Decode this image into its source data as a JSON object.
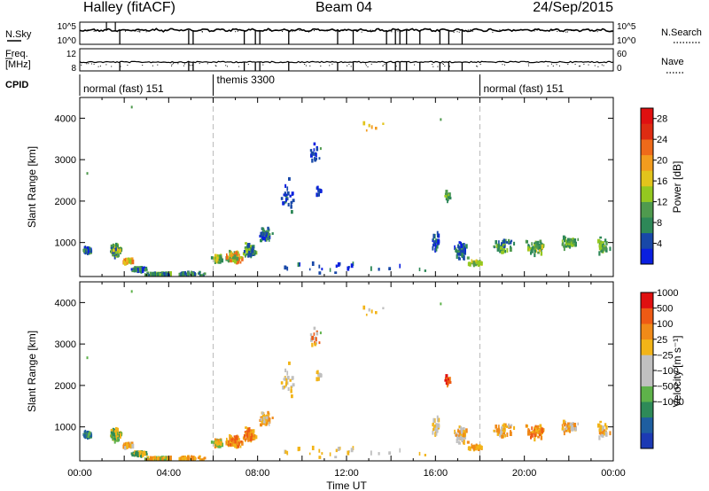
{
  "header": {
    "station": "Halley (fitACF)",
    "beam": "Beam 04",
    "date": "24/Sep/2015"
  },
  "strip": {
    "nsky_label": "N.Sky",
    "nsky_ticks": [
      "10^5",
      "10^0"
    ],
    "nsearch_label": "N.Search",
    "nsearch_ticks": [
      "10^5",
      "10^0"
    ],
    "freq_label_line1": "Freq.",
    "freq_label_line2": "[MHz]",
    "freq_ticks": [
      "12",
      "8"
    ],
    "nave_label": "Nave",
    "nave_ticks": [
      "60",
      "0"
    ],
    "cpid_label": "CPID",
    "cpid_segments": [
      {
        "label": "normal (fast) 151",
        "start_hour": 0
      },
      {
        "label": "themis 3300",
        "start_hour": 6
      },
      {
        "label": "normal (fast) 151",
        "start_hour": 18
      }
    ]
  },
  "chart_data": [
    {
      "type": "heatmap",
      "panel": "power",
      "ylabel": "Slant Range [km]",
      "xlabel": "",
      "xlim_hours": [
        0,
        24
      ],
      "ylim_km": [
        180,
        4500
      ],
      "yticks": [
        "4000",
        "3000",
        "2000",
        "1000"
      ],
      "ytick_values": [
        4000,
        3000,
        2000,
        1000
      ],
      "xticks": [
        "00:00",
        "04:00",
        "08:00",
        "12:00",
        "16:00",
        "20:00",
        "00:00"
      ],
      "xtick_hours": [
        0,
        4,
        8,
        12,
        16,
        20,
        24
      ],
      "colorbar": {
        "label": "Power [dB]",
        "ticks": [
          "28",
          "24",
          "20",
          "16",
          "12",
          "8",
          "4"
        ],
        "tick_values": [
          28,
          24,
          20,
          16,
          12,
          8,
          4
        ],
        "range": [
          0,
          30
        ],
        "colors": [
          "#0a1fe0",
          "#1848a8",
          "#2e8858",
          "#4f9a4e",
          "#94c820",
          "#e2c41c",
          "#f29c1e",
          "#ee6a1a",
          "#de2c12",
          "#e01010"
        ]
      }
    },
    {
      "type": "heatmap",
      "panel": "velocity",
      "ylabel": "Slant Range [km]",
      "xlabel": "Time UT",
      "xlim_hours": [
        0,
        24
      ],
      "ylim_km": [
        180,
        4500
      ],
      "yticks": [
        "4000",
        "3000",
        "2000",
        "1000"
      ],
      "ytick_values": [
        4000,
        3000,
        2000,
        1000
      ],
      "xticks": [
        "00:00",
        "04:00",
        "08:00",
        "12:00",
        "16:00",
        "20:00",
        "00:00"
      ],
      "xtick_hours": [
        0,
        4,
        8,
        12,
        16,
        20,
        24
      ],
      "colorbar": {
        "label": "Velocity [m s⁻¹]",
        "ticks": [
          "1000",
          "500",
          "100",
          "25",
          "−25",
          "−100",
          "−500",
          "−1000"
        ],
        "colors": [
          "#1c3ab4",
          "#1e5ea0",
          "#2e8a58",
          "#5eb24a",
          "#c0c0c0",
          "#c0c0c0",
          "#f2b418",
          "#f08a18",
          "#ee5a14",
          "#e01010"
        ]
      }
    }
  ]
}
